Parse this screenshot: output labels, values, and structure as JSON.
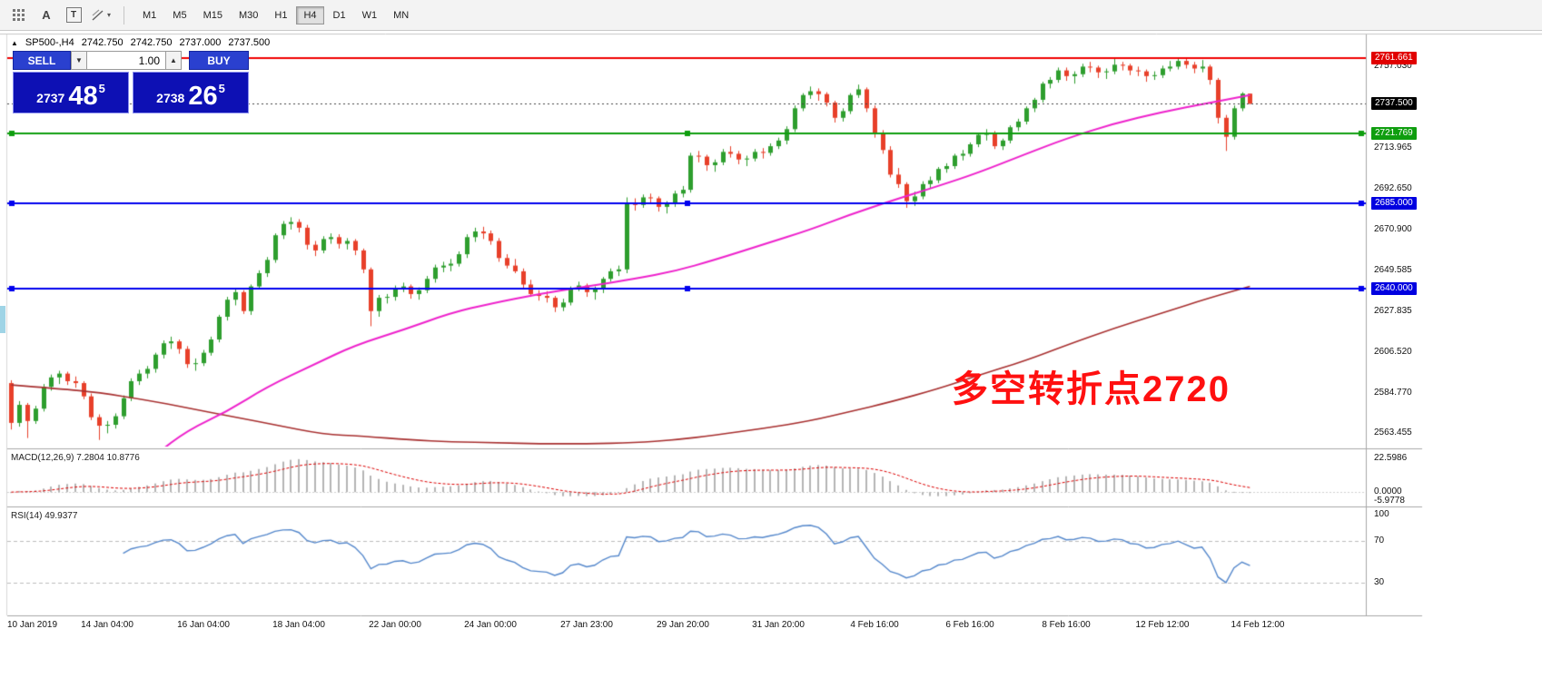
{
  "toolbar": {
    "text_tool_glyph": "A",
    "textbox_tool_glyph": "T",
    "timeframes": [
      "M1",
      "M5",
      "M15",
      "M30",
      "H1",
      "H4",
      "D1",
      "W1",
      "MN"
    ],
    "active_timeframe": "H4"
  },
  "chart_header": {
    "collapse_glyph": "▲",
    "symbol": "SP500-,H4",
    "open": "2742.750",
    "high": "2742.750",
    "low": "2737.000",
    "close": "2737.500"
  },
  "trade_panel": {
    "sell_label": "SELL",
    "buy_label": "BUY",
    "volume": "1.00",
    "spin_down": "▼",
    "spin_up": "▲",
    "sell_price_main": "2737",
    "sell_price_big": "48",
    "sell_price_sup": "5",
    "buy_price_main": "2738",
    "buy_price_big": "26",
    "buy_price_sup": "5"
  },
  "indicators": {
    "macd_label": "MACD(12,26,9) 7.2804 10.8776",
    "rsi_label": "RSI(14) 49.9377"
  },
  "annotation": {
    "text": "多空转折点2720",
    "color": "#ff1010"
  },
  "axes": {
    "price_ticks": [
      "2757.030",
      "2713.965",
      "2692.650",
      "2670.900",
      "2649.585",
      "2627.835",
      "2606.520",
      "2584.770",
      "2563.455"
    ],
    "price_tags": [
      {
        "text": "2761.661",
        "bg": "#e10000"
      },
      {
        "text": "2737.500",
        "bg": "#000000"
      },
      {
        "text": "2721.769",
        "bg": "#0f9e0f"
      },
      {
        "text": "2685.000",
        "bg": "#0000e0"
      },
      {
        "text": "2640.000",
        "bg": "#0000e0"
      }
    ],
    "macd_ticks": [
      {
        "v": 22.5986,
        "text": "22.5986"
      },
      {
        "v": 0,
        "text": "0.0000"
      },
      {
        "v": -5.9778,
        "text": "-5.9778"
      }
    ],
    "rsi_ticks": [
      {
        "v": 100,
        "text": "100"
      },
      {
        "v": 70,
        "text": "70"
      },
      {
        "v": 30,
        "text": "30"
      }
    ],
    "time_labels": [
      {
        "i": 0,
        "text": "10 Jan 2019"
      },
      {
        "i": 12,
        "text": "14 Jan 04:00"
      },
      {
        "i": 24,
        "text": "16 Jan 04:00"
      },
      {
        "i": 36,
        "text": "18 Jan 04:00"
      },
      {
        "i": 48,
        "text": "22 Jan 00:00"
      },
      {
        "i": 60,
        "text": "24 Jan 00:00"
      },
      {
        "i": 72,
        "text": "27 Jan 23:00"
      },
      {
        "i": 84,
        "text": "29 Jan 20:00"
      },
      {
        "i": 96,
        "text": "31 Jan 20:00"
      },
      {
        "i": 108,
        "text": "4 Feb 16:00"
      },
      {
        "i": 120,
        "text": "6 Feb 16:00"
      },
      {
        "i": 132,
        "text": "8 Feb 16:00"
      },
      {
        "i": 144,
        "text": "12 Feb 12:00"
      },
      {
        "i": 156,
        "text": "14 Feb 12:00"
      }
    ]
  },
  "chart_data": {
    "type": "candlestick",
    "symbol": "SP500-",
    "timeframe": "H4",
    "main_range": [
      2556.5,
      2773.0
    ],
    "slots": 170,
    "up_color": "#2e9e2e",
    "down_color": "#e8402a",
    "current_price": 2737.5,
    "candles": [
      [
        2590,
        2591.5,
        2565.5,
        2569
      ],
      [
        2569,
        2580.5,
        2567,
        2578.5
      ],
      [
        2578.5,
        2579.5,
        2561,
        2570
      ],
      [
        2570,
        2578,
        2568.5,
        2576.5
      ],
      [
        2576.5,
        2589.5,
        2575,
        2588
      ],
      [
        2588,
        2594.5,
        2586,
        2593
      ],
      [
        2593,
        2596.5,
        2589.5,
        2595
      ],
      [
        2595,
        2596,
        2589,
        2591
      ],
      [
        2591,
        2593.5,
        2587.5,
        2590
      ],
      [
        2590,
        2591,
        2581.5,
        2583
      ],
      [
        2583,
        2584.5,
        2570.5,
        2572
      ],
      [
        2572,
        2573.5,
        2560,
        2567.5
      ],
      [
        2567.5,
        2570,
        2563.5,
        2568
      ],
      [
        2568,
        2574,
        2566,
        2572.5
      ],
      [
        2572.5,
        2583.5,
        2571,
        2582
      ],
      [
        2582,
        2592.5,
        2580.5,
        2591
      ],
      [
        2591,
        2597,
        2589,
        2595
      ],
      [
        2595,
        2599,
        2592.5,
        2597.5
      ],
      [
        2597.5,
        2606,
        2595.5,
        2605
      ],
      [
        2605,
        2612.5,
        2603,
        2611
      ],
      [
        2611,
        2614.5,
        2608,
        2612
      ],
      [
        2612,
        2613,
        2605.5,
        2608
      ],
      [
        2608,
        2609.5,
        2598,
        2600
      ],
      [
        2600,
        2603,
        2596.5,
        2600.5
      ],
      [
        2600.5,
        2607.5,
        2599,
        2606
      ],
      [
        2606,
        2614.5,
        2604.5,
        2613
      ],
      [
        2613,
        2626,
        2611.5,
        2625
      ],
      [
        2625,
        2635.5,
        2623,
        2634
      ],
      [
        2634,
        2639.5,
        2631,
        2638
      ],
      [
        2638,
        2639,
        2626.5,
        2628
      ],
      [
        2628,
        2642,
        2626,
        2641
      ],
      [
        2641,
        2649.5,
        2639.5,
        2648
      ],
      [
        2648,
        2656.5,
        2646,
        2655
      ],
      [
        2655,
        2669,
        2653.5,
        2668
      ],
      [
        2668,
        2675.5,
        2666,
        2674
      ],
      [
        2674,
        2677.5,
        2671,
        2675
      ],
      [
        2675,
        2676.5,
        2669.5,
        2672
      ],
      [
        2672,
        2673.5,
        2660.5,
        2663
      ],
      [
        2663,
        2665,
        2657,
        2660
      ],
      [
        2660,
        2667.5,
        2658.5,
        2666
      ],
      [
        2666,
        2669,
        2663.5,
        2667
      ],
      [
        2667,
        2668.5,
        2661,
        2663.5
      ],
      [
        2663.5,
        2666.5,
        2660.5,
        2665
      ],
      [
        2665,
        2666,
        2657.5,
        2660
      ],
      [
        2660,
        2661,
        2648,
        2650
      ],
      [
        2650,
        2651,
        2620,
        2628
      ],
      [
        2628,
        2636.5,
        2625,
        2635
      ],
      [
        2635,
        2637,
        2632,
        2635.5
      ],
      [
        2635.5,
        2641.5,
        2633.5,
        2640
      ],
      [
        2640,
        2643,
        2638,
        2641
      ],
      [
        2641,
        2642,
        2634.5,
        2637
      ],
      [
        2637,
        2640.5,
        2634,
        2639
      ],
      [
        2639,
        2646.5,
        2637.5,
        2645
      ],
      [
        2645,
        2652.5,
        2643,
        2651
      ],
      [
        2651,
        2654,
        2648.5,
        2652
      ],
      [
        2652,
        2655.5,
        2649,
        2653
      ],
      [
        2653,
        2659.5,
        2651.5,
        2658
      ],
      [
        2658,
        2668.5,
        2656,
        2667
      ],
      [
        2667,
        2672,
        2664.5,
        2670
      ],
      [
        2670,
        2672.5,
        2666,
        2669
      ],
      [
        2669,
        2670.5,
        2663,
        2665
      ],
      [
        2665,
        2666.5,
        2654,
        2656
      ],
      [
        2656,
        2658,
        2650.5,
        2652
      ],
      [
        2652,
        2655.5,
        2648,
        2649
      ],
      [
        2649,
        2650.5,
        2640,
        2642
      ],
      [
        2642,
        2644.5,
        2635.5,
        2637
      ],
      [
        2637,
        2639,
        2633.5,
        2636
      ],
      [
        2636,
        2638.5,
        2632.5,
        2635
      ],
      [
        2635,
        2636,
        2627.5,
        2630
      ],
      [
        2630,
        2634.5,
        2628,
        2632.5
      ],
      [
        2632.5,
        2641,
        2631,
        2640
      ],
      [
        2640,
        2643.5,
        2638.5,
        2641.5
      ],
      [
        2641.5,
        2642.5,
        2635.5,
        2638
      ],
      [
        2638,
        2641,
        2634,
        2639.5
      ],
      [
        2639.5,
        2646,
        2637.5,
        2645
      ],
      [
        2645,
        2650.5,
        2643.5,
        2649
      ],
      [
        2649,
        2652,
        2646.5,
        2650
      ],
      [
        2650,
        2688,
        2648,
        2685
      ],
      [
        2685,
        2687.5,
        2681,
        2684
      ],
      [
        2684,
        2689.5,
        2682.5,
        2688
      ],
      [
        2688,
        2690,
        2684.5,
        2687.5
      ],
      [
        2687.5,
        2688.5,
        2680.5,
        2683
      ],
      [
        2683,
        2686,
        2679.5,
        2684.5
      ],
      [
        2684.5,
        2691.5,
        2683,
        2690
      ],
      [
        2690,
        2694,
        2688,
        2692
      ],
      [
        2692,
        2711.5,
        2690.5,
        2710
      ],
      [
        2710,
        2712.5,
        2706.5,
        2709.5
      ],
      [
        2709.5,
        2710.5,
        2702,
        2705
      ],
      [
        2705,
        2708,
        2701.5,
        2706.5
      ],
      [
        2706.5,
        2713.5,
        2705,
        2712
      ],
      [
        2712,
        2715,
        2709,
        2711
      ],
      [
        2711,
        2712.5,
        2705.5,
        2708
      ],
      [
        2708,
        2710,
        2704.5,
        2708.5
      ],
      [
        2708.5,
        2713.5,
        2707,
        2712
      ],
      [
        2712,
        2714,
        2708.5,
        2711.5
      ],
      [
        2711.5,
        2716.5,
        2710,
        2715
      ],
      [
        2715,
        2719.5,
        2713.5,
        2718
      ],
      [
        2718,
        2725.5,
        2716,
        2724
      ],
      [
        2724,
        2736.5,
        2722.5,
        2735
      ],
      [
        2735,
        2743,
        2733.5,
        2742
      ],
      [
        2742,
        2746.5,
        2740,
        2744
      ],
      [
        2744,
        2745.5,
        2739,
        2742.5
      ],
      [
        2742.5,
        2743.5,
        2736,
        2738
      ],
      [
        2738,
        2739,
        2727.5,
        2730
      ],
      [
        2730,
        2735,
        2728,
        2733.5
      ],
      [
        2733.5,
        2743,
        2732,
        2742
      ],
      [
        2742,
        2747.5,
        2740.5,
        2745
      ],
      [
        2745,
        2746,
        2733,
        2735
      ],
      [
        2735,
        2736.5,
        2719.5,
        2722
      ],
      [
        2722,
        2723.5,
        2711,
        2713
      ],
      [
        2713,
        2715,
        2698.5,
        2700
      ],
      [
        2700,
        2703.5,
        2693,
        2695
      ],
      [
        2695,
        2696,
        2682.5,
        2686
      ],
      [
        2686,
        2691,
        2683.5,
        2688.5
      ],
      [
        2688.5,
        2696.5,
        2687,
        2695
      ],
      [
        2695,
        2699,
        2693,
        2697
      ],
      [
        2697,
        2704,
        2695.5,
        2703
      ],
      [
        2703,
        2706,
        2701,
        2704.5
      ],
      [
        2704.5,
        2711,
        2703,
        2710
      ],
      [
        2710,
        2713,
        2707.5,
        2711
      ],
      [
        2711,
        2717,
        2709.5,
        2716
      ],
      [
        2716,
        2722,
        2714.5,
        2721
      ],
      [
        2721,
        2724,
        2718,
        2722
      ],
      [
        2722,
        2723,
        2713.5,
        2715
      ],
      [
        2715,
        2719,
        2713,
        2718
      ],
      [
        2718,
        2726,
        2716.5,
        2725
      ],
      [
        2725,
        2729.5,
        2723,
        2728
      ],
      [
        2728,
        2736,
        2726.5,
        2735
      ],
      [
        2735,
        2740.5,
        2733,
        2739.5
      ],
      [
        2739.5,
        2749,
        2738,
        2748
      ],
      [
        2748,
        2751.5,
        2745.5,
        2750
      ],
      [
        2750,
        2756.5,
        2748.5,
        2755
      ],
      [
        2755,
        2756.5,
        2749.5,
        2752
      ],
      [
        2752,
        2754.5,
        2748,
        2753
      ],
      [
        2753,
        2758.5,
        2751.5,
        2757
      ],
      [
        2757,
        2759.5,
        2754,
        2756.5
      ],
      [
        2756.5,
        2757.5,
        2751,
        2754
      ],
      [
        2754,
        2756,
        2750.5,
        2754.5
      ],
      [
        2754.5,
        2761,
        2753,
        2758
      ],
      [
        2758,
        2759.5,
        2755,
        2757.5
      ],
      [
        2757.5,
        2758.5,
        2752.5,
        2755
      ],
      [
        2755,
        2757,
        2752,
        2754.5
      ],
      [
        2754.5,
        2755.5,
        2749,
        2752
      ],
      [
        2752,
        2754.5,
        2750,
        2752.5
      ],
      [
        2752.5,
        2757.5,
        2751,
        2756
      ],
      [
        2756,
        2760,
        2754.5,
        2757
      ],
      [
        2757,
        2761.66,
        2755.5,
        2760
      ],
      [
        2760,
        2761.3,
        2756,
        2758
      ],
      [
        2758,
        2759.5,
        2753.5,
        2756
      ],
      [
        2756,
        2760.5,
        2754,
        2757
      ],
      [
        2757,
        2758,
        2747.5,
        2750
      ],
      [
        2750,
        2751,
        2727,
        2730
      ],
      [
        2730,
        2731.5,
        2712.5,
        2720
      ],
      [
        2720,
        2736.5,
        2718.5,
        2735
      ],
      [
        2735,
        2743.5,
        2733.5,
        2742.75
      ],
      [
        2742.75,
        2742.75,
        2737,
        2737.5
      ]
    ],
    "h_lines": [
      {
        "price": 2761.661,
        "color": "#f00000",
        "width": 2,
        "handles": false
      },
      {
        "price": 2721.769,
        "color": "#0f9e0f",
        "width": 2,
        "handles": true
      },
      {
        "price": 2685.0,
        "color": "#0000ee",
        "width": 2,
        "handles": true
      },
      {
        "price": 2640.0,
        "color": "#0000ee",
        "width": 2,
        "handles": true
      }
    ],
    "ma_fast": {
      "name": "MA fast",
      "color": "#ee22cc",
      "points": [
        [
          14,
          2540
        ],
        [
          18,
          2552
        ],
        [
          22,
          2565
        ],
        [
          27,
          2575
        ],
        [
          32,
          2588
        ],
        [
          38,
          2600
        ],
        [
          43,
          2610
        ],
        [
          49,
          2618
        ],
        [
          55,
          2627
        ],
        [
          60,
          2632
        ],
        [
          66,
          2637
        ],
        [
          72,
          2641
        ],
        [
          78,
          2645
        ],
        [
          83,
          2649
        ],
        [
          88,
          2655
        ],
        [
          94,
          2663
        ],
        [
          100,
          2671
        ],
        [
          105,
          2679
        ],
        [
          110,
          2686
        ],
        [
          116,
          2694
        ],
        [
          121,
          2701
        ],
        [
          127,
          2711
        ],
        [
          132,
          2719
        ],
        [
          138,
          2727
        ],
        [
          144,
          2733
        ],
        [
          150,
          2738
        ],
        [
          155,
          2742
        ]
      ]
    },
    "ma_slow": {
      "name": "MA slow",
      "color": "#a83030",
      "points": [
        [
          0,
          2589
        ],
        [
          6,
          2587
        ],
        [
          11,
          2585
        ],
        [
          17,
          2581
        ],
        [
          22,
          2577
        ],
        [
          28,
          2572
        ],
        [
          33,
          2568
        ],
        [
          39,
          2563
        ],
        [
          44,
          2562
        ],
        [
          50,
          2560
        ],
        [
          55,
          2559
        ],
        [
          61,
          2558.5
        ],
        [
          66,
          2558
        ],
        [
          72,
          2558
        ],
        [
          78,
          2558.5
        ],
        [
          83,
          2560
        ],
        [
          88,
          2562.5
        ],
        [
          94,
          2566
        ],
        [
          100,
          2570
        ],
        [
          105,
          2575
        ],
        [
          110,
          2580
        ],
        [
          116,
          2587
        ],
        [
          121,
          2594
        ],
        [
          127,
          2602
        ],
        [
          132,
          2610
        ],
        [
          138,
          2619
        ],
        [
          144,
          2627
        ],
        [
          150,
          2635
        ],
        [
          155,
          2641
        ]
      ]
    },
    "macd": {
      "params": [
        12,
        26,
        9
      ],
      "range": [
        -5.9778,
        22.5986
      ],
      "hist_color": "#b5b5b5",
      "signal_color": "#dd0000"
    },
    "rsi": {
      "period": 14,
      "range": [
        0,
        100
      ],
      "levels": [
        30,
        70
      ],
      "color": "#5588cc"
    }
  }
}
